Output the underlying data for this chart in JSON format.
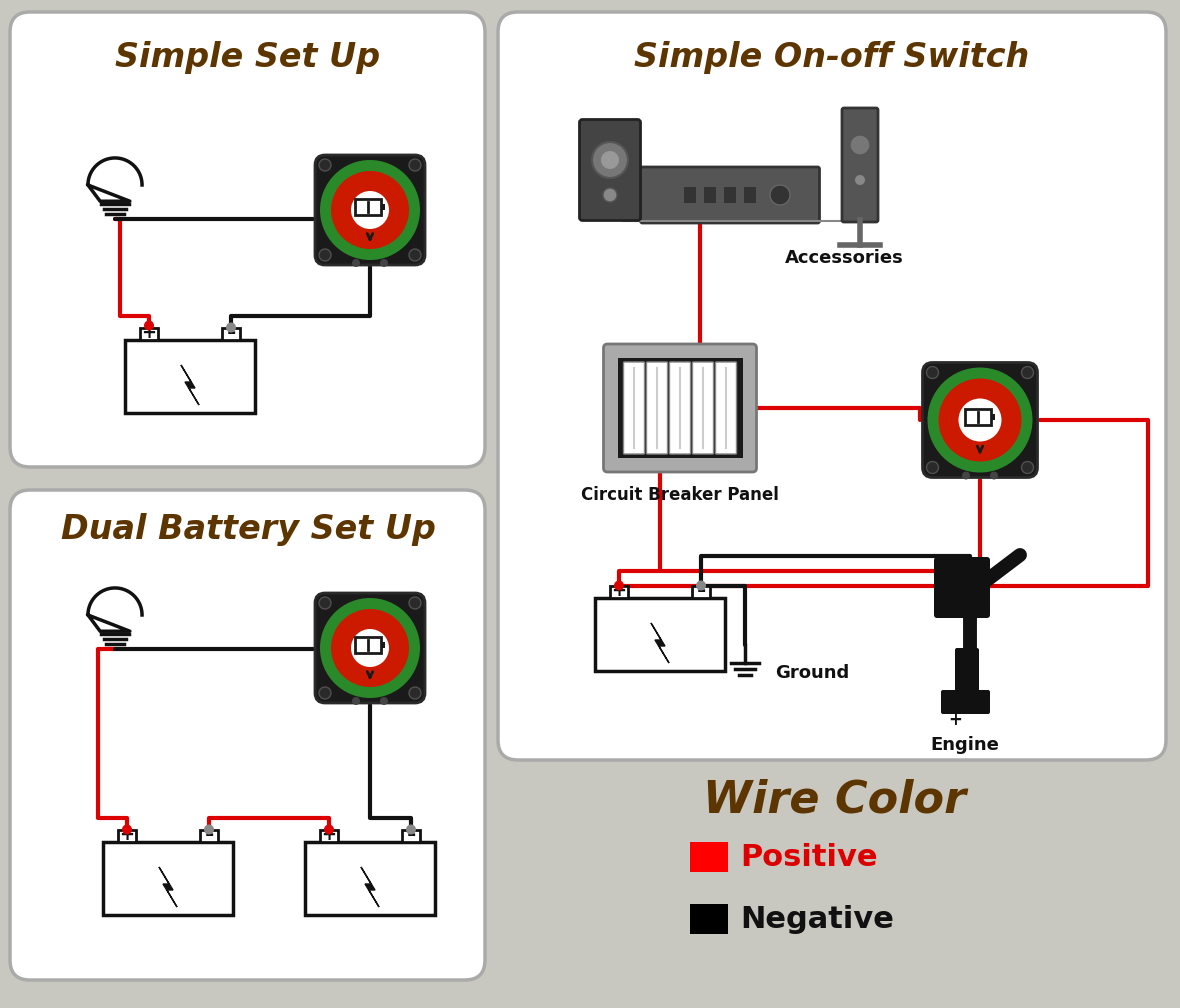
{
  "bg_color": "#c8c8c0",
  "box_bg": "#ffffff",
  "title_color": "#5c3500",
  "wire_red": "#dd0000",
  "wire_black": "#111111",
  "switch_black": "#1a1a1a",
  "switch_green": "#2a8a2a",
  "switch_red": "#cc1a00",
  "section1_title": "Simple Set Up",
  "section2_title": "Dual Battery Set Up",
  "section3_title": "Simple On-off Switch",
  "legend_title": "Wire Color",
  "legend_pos_label": "Positive",
  "legend_neg_label": "Negative",
  "accessories_label": "Accessories",
  "breaker_label": "Circuit Breaker Panel",
  "ground_label": "Ground",
  "engine_label": "Engine"
}
